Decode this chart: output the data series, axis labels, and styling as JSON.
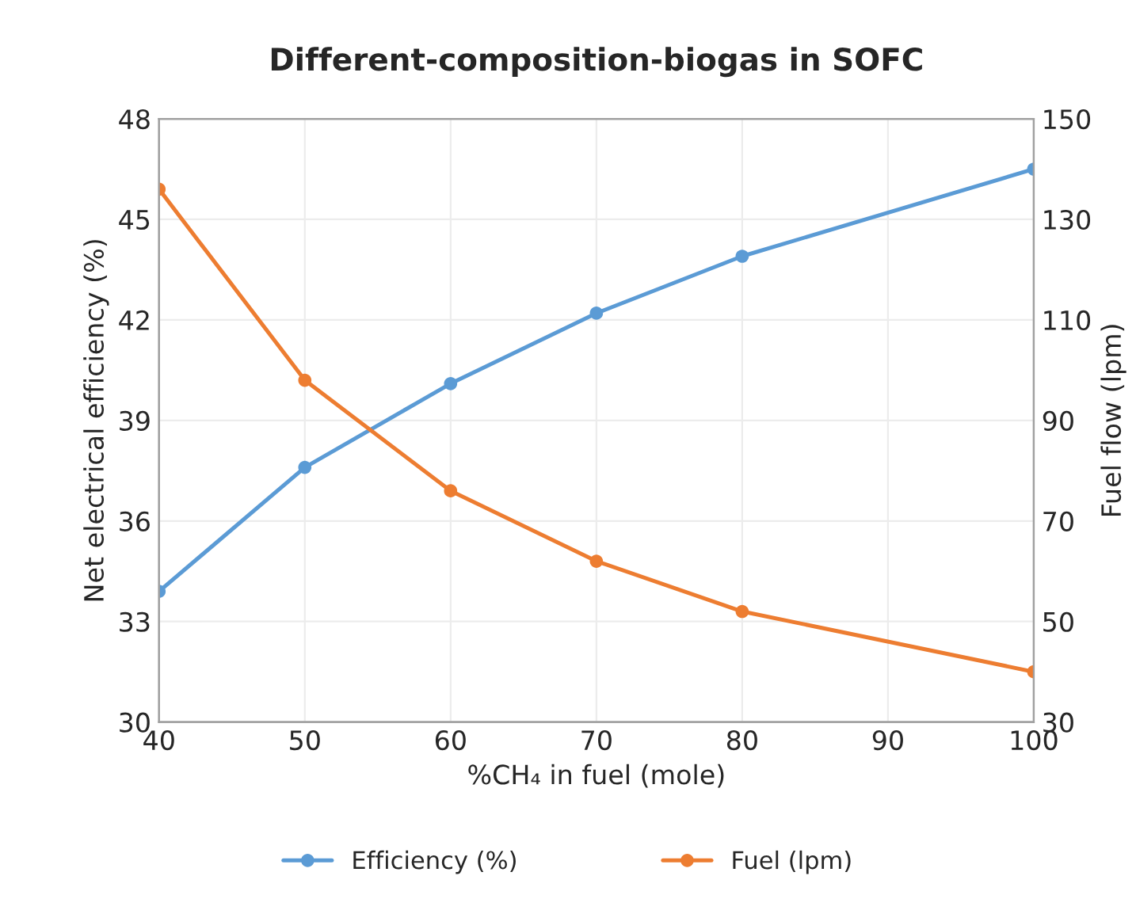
{
  "chart_data": {
    "type": "line",
    "title": "Different-composition-biogas in SOFC",
    "xlabel": "%CH₄ in fuel (mole)",
    "ylabel": "Net electrical efficiency (%)",
    "y2label": "Fuel flow (lpm)",
    "x": [
      40,
      50,
      60,
      70,
      80,
      100
    ],
    "series": [
      {
        "name": "Efficiency (%)",
        "color": "#5b9bd5",
        "values": [
          33.9,
          37.6,
          40.1,
          42.2,
          43.9,
          46.5
        ]
      },
      {
        "name": "Fuel (lpm)",
        "color": "#ed7d31",
        "axis": "y2",
        "values": [
          136,
          98,
          76,
          62,
          52,
          40
        ]
      }
    ],
    "xlim": [
      40,
      100
    ],
    "xticks": [
      40,
      50,
      60,
      70,
      80,
      90,
      100
    ],
    "ylim": [
      30,
      48
    ],
    "yticks": [
      30,
      33,
      36,
      39,
      42,
      45,
      48
    ],
    "y2lim": [
      30,
      150
    ],
    "y2ticks": [
      30,
      50,
      70,
      90,
      110,
      130,
      150
    ],
    "grid": true,
    "legend": "bottom",
    "marker": "circle",
    "line_style": "solid"
  }
}
